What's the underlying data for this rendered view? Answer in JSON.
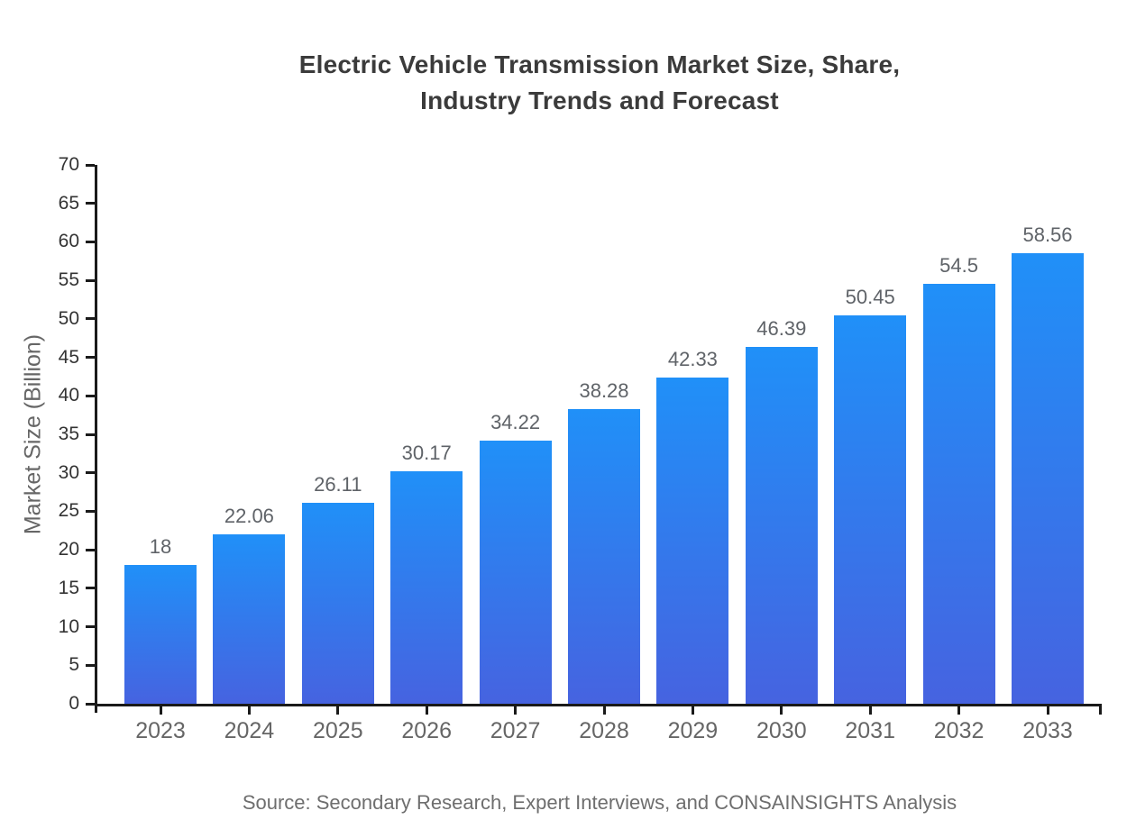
{
  "chart_data": {
    "type": "bar",
    "title": "Electric Vehicle Transmission Market Size, Share, Industry Trends and Forecast",
    "title_lines": [
      "Electric Vehicle Transmission Market Size, Share,",
      "Industry Trends and Forecast"
    ],
    "categories": [
      "2023",
      "2024",
      "2025",
      "2026",
      "2027",
      "2028",
      "2029",
      "2030",
      "2031",
      "2032",
      "2033"
    ],
    "values": [
      18,
      22.06,
      26.11,
      30.17,
      34.22,
      38.28,
      42.33,
      46.39,
      50.45,
      54.5,
      58.56
    ],
    "value_labels": [
      "18",
      "22.06",
      "26.11",
      "30.17",
      "34.22",
      "38.28",
      "42.33",
      "46.39",
      "50.45",
      "54.5",
      "58.56"
    ],
    "xlabel": "",
    "ylabel": "Market Size (Billion)",
    "ylim": [
      0,
      70
    ],
    "ytick_step": 5,
    "grid": false,
    "legend": null,
    "colors": {
      "bar_gradient_top": "#2090f8",
      "bar_gradient_bottom": "#4663e0",
      "axis": "#1a1a1a",
      "ytick_label": "#333333",
      "xtick_label": "#666666",
      "value_label": "#5f6368",
      "title": "#3b3b3b",
      "source": "#6e6e6e",
      "ylabel": "#666666"
    },
    "source": "Source: Secondary Research, Expert Interviews, and CONSAINSIGHTS Analysis"
  }
}
